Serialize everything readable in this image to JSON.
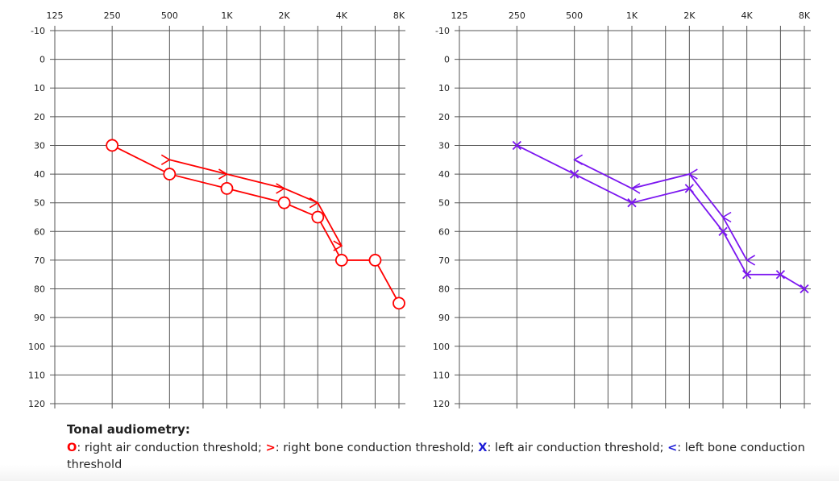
{
  "chart_data": [
    {
      "type": "line",
      "x_tick_labels": [
        "125",
        "250",
        "500",
        "1K",
        "2K",
        "4K",
        "8K"
      ],
      "x_ticks_hz": [
        125,
        250,
        500,
        1000,
        2000,
        4000,
        8000
      ],
      "y_tick_labels": [
        "-10",
        "0",
        "10",
        "20",
        "30",
        "40",
        "50",
        "60",
        "70",
        "80",
        "90",
        "100",
        "110",
        "120"
      ],
      "ylim": [
        -10,
        120
      ],
      "y_inverted": true,
      "x_scale": "log",
      "grid": true,
      "series": [
        {
          "name": "O",
          "marker": "circle",
          "color": "#ff0000",
          "x": [
            250,
            500,
            1000,
            2000,
            3000,
            4000,
            6000,
            8000
          ],
          "y": [
            30,
            40,
            45,
            50,
            55,
            70,
            70,
            85
          ]
        },
        {
          "name": ">",
          "marker": "right-angle",
          "color": "#ff0000",
          "x": [
            500,
            1000,
            2000,
            3000,
            4000
          ],
          "y": [
            35,
            40,
            45,
            50,
            65
          ]
        }
      ]
    },
    {
      "type": "line",
      "x_tick_labels": [
        "125",
        "250",
        "500",
        "1K",
        "2K",
        "4K",
        "8K"
      ],
      "x_ticks_hz": [
        125,
        250,
        500,
        1000,
        2000,
        4000,
        8000
      ],
      "y_tick_labels": [
        "-10",
        "0",
        "10",
        "20",
        "30",
        "40",
        "50",
        "60",
        "70",
        "80",
        "90",
        "100",
        "110",
        "120"
      ],
      "ylim": [
        -10,
        120
      ],
      "y_inverted": true,
      "x_scale": "log",
      "grid": true,
      "series": [
        {
          "name": "X",
          "marker": "cross",
          "color": "#7b16f0",
          "x": [
            250,
            500,
            1000,
            2000,
            3000,
            4000,
            6000,
            8000
          ],
          "y": [
            30,
            40,
            50,
            45,
            60,
            75,
            75,
            80
          ]
        },
        {
          "name": "<",
          "marker": "left-angle",
          "color": "#7b16f0",
          "x": [
            500,
            1000,
            2000,
            3000,
            4000
          ],
          "y": [
            35,
            45,
            40,
            55,
            70
          ]
        }
      ]
    }
  ],
  "caption": {
    "title": "Tonal audiometry:",
    "legend": [
      {
        "symbol": "O",
        "color": "#ff0000",
        "text": ": right air conduction threshold; "
      },
      {
        "symbol": ">",
        "color": "#ff0000",
        "text": ": right bone conduction threshold; "
      },
      {
        "symbol": "X",
        "color": "#1a1ad6",
        "text": ": left air conduction threshold; "
      },
      {
        "symbol": "<",
        "color": "#1a1ad6",
        "text": ": left bone conduction threshold"
      }
    ]
  }
}
